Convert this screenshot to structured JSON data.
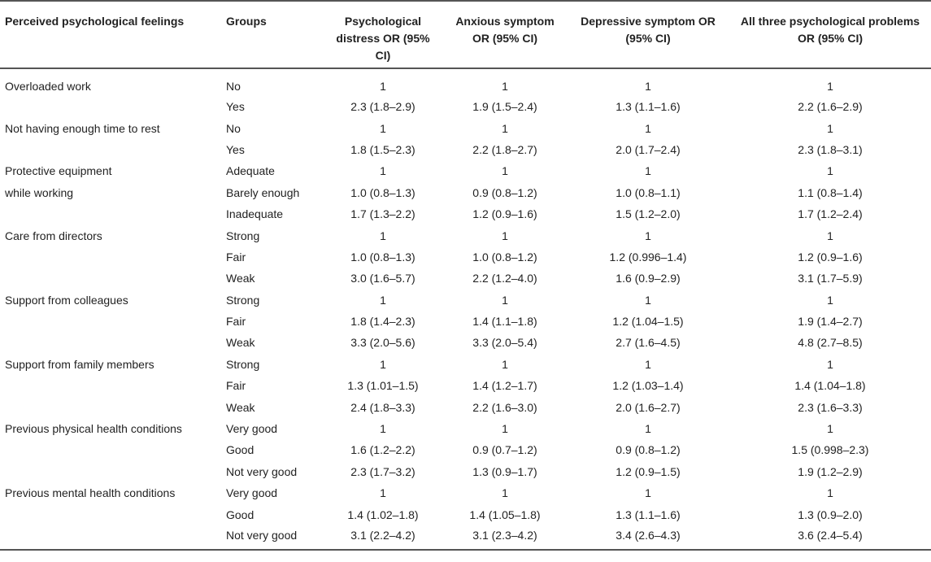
{
  "headers": [
    "Perceived psychological feelings",
    "Groups",
    "Psychological distress OR (95% CI)",
    "Anxious symptom OR (95% CI)",
    "Depressive symptom OR (95% CI)",
    "All three psychological problems OR (95% CI)"
  ],
  "rows": [
    [
      "Overloaded work",
      "No",
      "1",
      "1",
      "1",
      "1"
    ],
    [
      "",
      "Yes",
      "2.3 (1.8–2.9)",
      "1.9 (1.5–2.4)",
      "1.3 (1.1–1.6)",
      "2.2 (1.6–2.9)"
    ],
    [
      "Not having enough time to rest",
      "No",
      "1",
      "1",
      "1",
      "1"
    ],
    [
      "",
      "Yes",
      "1.8 (1.5–2.3)",
      "2.2 (1.8–2.7)",
      "2.0 (1.7–2.4)",
      "2.3 (1.8–3.1)"
    ],
    [
      "Protective equipment",
      "Adequate",
      "1",
      "1",
      "1",
      "1"
    ],
    [
      "while working",
      "Barely enough",
      "1.0 (0.8–1.3)",
      "0.9 (0.8–1.2)",
      "1.0 (0.8–1.1)",
      "1.1 (0.8–1.4)"
    ],
    [
      "",
      "Inadequate",
      "1.7 (1.3–2.2)",
      "1.2 (0.9–1.6)",
      "1.5 (1.2–2.0)",
      "1.7 (1.2–2.4)"
    ],
    [
      "Care from directors",
      "Strong",
      "1",
      "1",
      "1",
      "1"
    ],
    [
      "",
      "Fair",
      "1.0 (0.8–1.3)",
      "1.0 (0.8–1.2)",
      "1.2 (0.996–1.4)",
      "1.2 (0.9–1.6)"
    ],
    [
      "",
      "Weak",
      "3.0 (1.6–5.7)",
      "2.2 (1.2–4.0)",
      "1.6 (0.9–2.9)",
      "3.1 (1.7–5.9)"
    ],
    [
      "Support from colleagues",
      "Strong",
      "1",
      "1",
      "1",
      "1"
    ],
    [
      "",
      "Fair",
      "1.8 (1.4–2.3)",
      "1.4 (1.1–1.8)",
      "1.2 (1.04–1.5)",
      "1.9 (1.4–2.7)"
    ],
    [
      "",
      "Weak",
      "3.3 (2.0–5.6)",
      "3.3 (2.0–5.4)",
      "2.7 (1.6–4.5)",
      "4.8 (2.7–8.5)"
    ],
    [
      "Support from family members",
      "Strong",
      "1",
      "1",
      "1",
      "1"
    ],
    [
      "",
      "Fair",
      "1.3 (1.01–1.5)",
      "1.4 (1.2–1.7)",
      "1.2 (1.03–1.4)",
      "1.4 (1.04–1.8)"
    ],
    [
      "",
      "Weak",
      "2.4 (1.8–3.3)",
      "2.2 (1.6–3.0)",
      "2.0 (1.6–2.7)",
      "2.3 (1.6–3.3)"
    ],
    [
      "Previous physical health conditions",
      "Very good",
      "1",
      "1",
      "1",
      "1"
    ],
    [
      "",
      "Good",
      "1.6 (1.2–2.2)",
      "0.9 (0.7–1.2)",
      "0.9 (0.8–1.2)",
      "1.5 (0.998–2.3)"
    ],
    [
      "",
      "Not very good",
      "2.3 (1.7–3.2)",
      "1.3 (0.9–1.7)",
      "1.2 (0.9–1.5)",
      "1.9 (1.2–2.9)"
    ],
    [
      "Previous mental health conditions",
      "Very good",
      "1",
      "1",
      "1",
      "1"
    ],
    [
      "",
      "Good",
      "1.4 (1.02–1.8)",
      "1.4 (1.05–1.8)",
      "1.3 (1.1–1.6)",
      "1.3 (0.9–2.0)"
    ],
    [
      "",
      "Not very good",
      "3.1 (2.2–4.2)",
      "3.1 (2.3–4.2)",
      "3.4 (2.6–4.3)",
      "3.6 (2.4–5.4)"
    ]
  ]
}
